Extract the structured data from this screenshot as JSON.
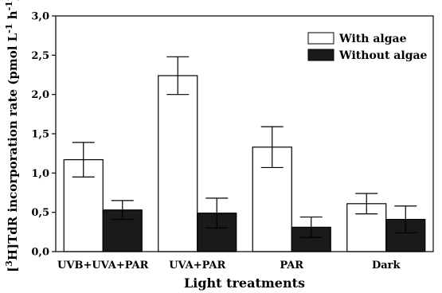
{
  "chart_data": {
    "type": "bar",
    "categories": [
      "UVB+UVA+PAR",
      "UVA+PAR",
      "PAR",
      "Dark"
    ],
    "series": [
      {
        "name": "With algae",
        "values": [
          1.17,
          2.24,
          1.33,
          0.61
        ],
        "errors": [
          0.22,
          0.24,
          0.26,
          0.13
        ],
        "color": "#ffffff"
      },
      {
        "name": "Without algae",
        "values": [
          0.53,
          0.49,
          0.31,
          0.41
        ],
        "errors": [
          0.12,
          0.19,
          0.13,
          0.17
        ],
        "color": "#1a1a1a"
      }
    ],
    "y_ticks": [
      "0,0",
      "0,5",
      "1,0",
      "1,5",
      "2,0",
      "2,5",
      "3,0"
    ],
    "ylim": [
      0,
      3
    ],
    "xlabel": "Light treatments",
    "ylabel_parts": {
      "open": "[",
      "sup1": "3",
      "mid": "H]TdR incorporation rate (pmol L",
      "sup2": "-1",
      "h": " h",
      "sup3": "-1",
      "close": ")"
    },
    "legend_position": "top-right",
    "grid": false
  }
}
